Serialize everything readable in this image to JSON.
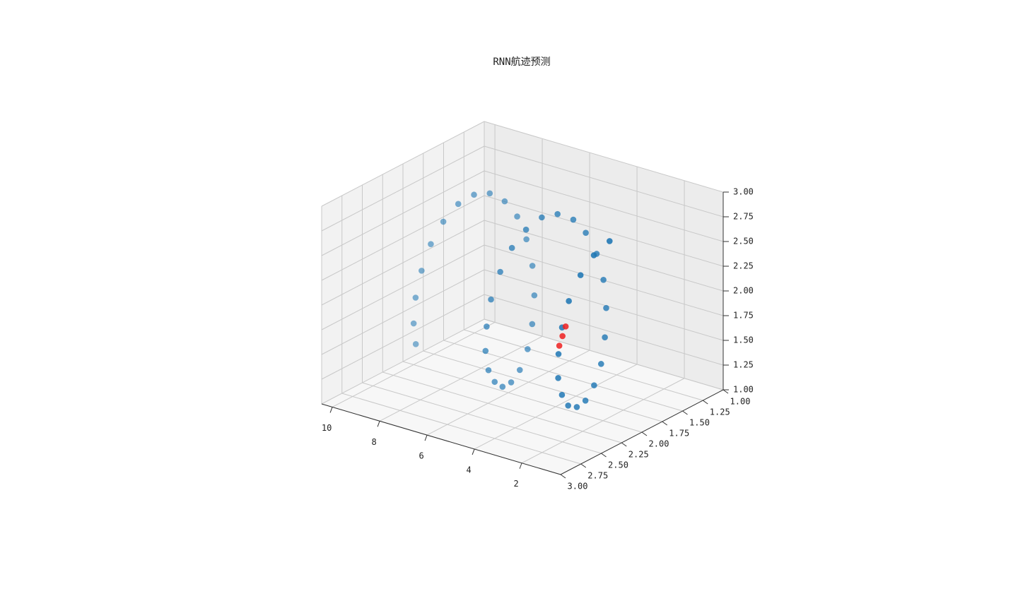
{
  "chart_data": {
    "type": "scatter3d",
    "title": "RNN航迹预测",
    "xlim": [
      0.36,
      10.45
    ],
    "ylim": [
      1,
      3
    ],
    "zlim": [
      1,
      3
    ],
    "xticks": [
      2,
      4,
      6,
      8,
      10
    ],
    "yticks": [
      {
        "value": 1,
        "label": "1.00"
      },
      1.25,
      {
        "value": 1.5,
        "label": "1.50"
      },
      1.75,
      {
        "value": 2,
        "label": "2.00"
      },
      2.25,
      {
        "value": 2.5,
        "label": "2.50"
      },
      2.75,
      {
        "value": 3,
        "label": "3.00"
      }
    ],
    "zticks": [
      {
        "value": 1,
        "label": "1.00"
      },
      1.25,
      {
        "value": 1.5,
        "label": "1.50"
      },
      1.75,
      {
        "value": 2,
        "label": "2.00"
      },
      2.25,
      {
        "value": 2.5,
        "label": "2.50"
      },
      2.75,
      {
        "value": 3,
        "label": "3.00"
      }
    ],
    "grid": true,
    "series": [
      {
        "color": "#1f77b4",
        "x": [
          8.5,
          8.35,
          8.2,
          8.05,
          7.9,
          7.75,
          7.6,
          7.45,
          7.3,
          7.15,
          7.0,
          6.85,
          6.7,
          6.55,
          6.4,
          6.25,
          6.1,
          5.95,
          5.8,
          5.65,
          5.5,
          5.35,
          5.2,
          5.05,
          4.9,
          4.75,
          4.6,
          4.45,
          4.3,
          4.15,
          4.0,
          3.85,
          3.7,
          3.55,
          3.4,
          3.25,
          3.1,
          2.95,
          2.8,
          2.65,
          2.5,
          2.35,
          2.2,
          2.05,
          1.9,
          1.75,
          1.6,
          1.45
        ],
        "y": [
          2.41,
          2.48,
          2.5,
          2.47,
          2.4,
          2.29,
          2.15,
          2.0,
          1.85,
          1.71,
          1.6,
          1.53,
          1.5,
          1.52,
          1.59,
          1.69,
          1.83,
          1.98,
          2.13,
          2.27,
          2.39,
          2.47,
          2.5,
          2.49,
          2.42,
          2.32,
          2.19,
          2.04,
          1.89,
          1.74,
          1.63,
          1.54,
          1.5,
          1.51,
          1.57,
          1.66,
          1.79,
          1.94,
          2.09,
          2.24,
          2.36,
          2.45,
          2.49,
          2.49,
          2.45,
          2.35,
          2.23,
          2.08
        ],
        "z": [
          1.49,
          1.74,
          2.02,
          2.29,
          2.54,
          2.73,
          2.86,
          2.9,
          2.86,
          2.73,
          2.54,
          2.29,
          2.02,
          1.74,
          1.49,
          1.29,
          1.15,
          1.1,
          1.13,
          1.25,
          1.43,
          1.67,
          1.94,
          2.22,
          2.48,
          2.69,
          2.83,
          2.9,
          2.88,
          2.77,
          2.6,
          2.36,
          2.09,
          1.82,
          1.56,
          1.34,
          1.19,
          1.11,
          1.12,
          1.21,
          1.38,
          1.6,
          1.87,
          2.15,
          2.41,
          2.64,
          2.8,
          2.89
        ]
      },
      {
        "color": "#ee2222",
        "x": [
          2.2,
          2.1,
          2.0
        ],
        "y": [
          2.48,
          2.47,
          2.46
        ],
        "z": [
          1.95,
          2.05,
          2.15
        ]
      }
    ]
  }
}
